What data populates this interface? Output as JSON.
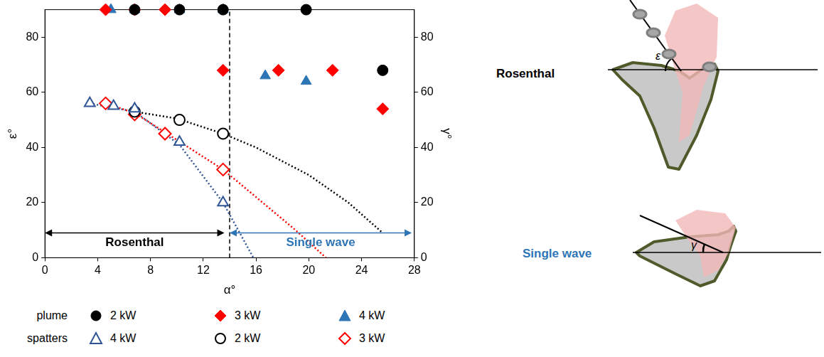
{
  "chart_data": {
    "type": "scatter",
    "x_label": "α°",
    "y_label": "ε°",
    "y2_label": "γ°",
    "xlim": [
      0,
      28
    ],
    "xticks": [
      0,
      4,
      8,
      12,
      16,
      20,
      24,
      28
    ],
    "ylim": [
      0,
      90
    ],
    "yticks": [
      0,
      20,
      40,
      60,
      80
    ],
    "y2lim": [
      0,
      90
    ],
    "y2ticks": [
      0,
      20,
      40,
      60,
      80
    ],
    "grid": false,
    "legend": "bottom",
    "series": [
      {
        "name": "2 kW",
        "group": "plume",
        "color": "#000000",
        "marker": "circle",
        "x": [
          6.8,
          10.2,
          13.5,
          19.8,
          25.6
        ],
        "values": [
          90,
          90,
          90,
          90,
          68
        ]
      },
      {
        "name": "3 kW",
        "group": "plume",
        "color": "#ff0000",
        "marker": "diamond",
        "x": [
          4.6,
          6.8,
          9.1,
          13.5,
          17.7,
          21.8,
          25.6
        ],
        "values": [
          90,
          90,
          90,
          68,
          68,
          68,
          54
        ]
      },
      {
        "name": "4 kW",
        "group": "plume",
        "color": "#2e75b6",
        "marker": "triangle",
        "x": [
          5.0,
          6.8,
          10.2,
          13.5,
          16.7,
          19.8
        ],
        "values": [
          90,
          90,
          90,
          90,
          66,
          64
        ]
      },
      {
        "name": "4 kW",
        "group": "spatters",
        "color": "#2f5597",
        "marker": "open_triangle",
        "x": [
          3.4,
          5.2,
          6.8,
          10.2,
          13.5
        ],
        "values": [
          56,
          55,
          54,
          42,
          20
        ]
      },
      {
        "name": "2 kW",
        "group": "spatters",
        "color": "#000000",
        "marker": "open_circle",
        "x": [
          6.8,
          10.2,
          13.5
        ],
        "values": [
          53,
          50,
          45
        ]
      },
      {
        "name": "3 kW",
        "group": "spatters",
        "color": "#ff0000",
        "marker": "open_diamond",
        "x": [
          4.6,
          6.8,
          9.1,
          13.5
        ],
        "values": [
          56,
          52,
          45,
          32
        ]
      }
    ],
    "trend_lines": [
      {
        "color": "#000000",
        "line_style": "dotted",
        "x": [
          6.8,
          10,
          13.5,
          16,
          20,
          23,
          25.6
        ],
        "values": [
          53,
          50.5,
          45,
          40,
          30,
          20,
          9
        ]
      },
      {
        "color": "#ff0000",
        "line_style": "dotted",
        "x": [
          4.6,
          6.8,
          9.1,
          13.5,
          16,
          19,
          21.3
        ],
        "values": [
          56,
          52.5,
          45.5,
          32,
          22,
          10,
          0
        ]
      },
      {
        "color": "#2f5597",
        "line_style": "dotted",
        "x": [
          3.4,
          6.8,
          10.2,
          13.5,
          15.8
        ],
        "values": [
          56,
          53,
          41,
          20,
          0
        ]
      }
    ],
    "divider": {
      "x": 14,
      "color": "#000000",
      "line_style": "dashed"
    },
    "annotations": [
      {
        "text": "Rosenthal",
        "x": [
          0,
          13.6
        ],
        "y": 9,
        "color": "#000000"
      },
      {
        "text": "Single wave",
        "x": [
          14,
          27.8
        ],
        "y": 9,
        "color": "#2e75b6"
      }
    ]
  },
  "diagram": {
    "panels": [
      {
        "label": "Rosenthal",
        "angle_label": "ε",
        "color": "#000000"
      },
      {
        "label": "Single wave",
        "angle_label": "γ",
        "color": "#2e75b6"
      }
    ]
  }
}
